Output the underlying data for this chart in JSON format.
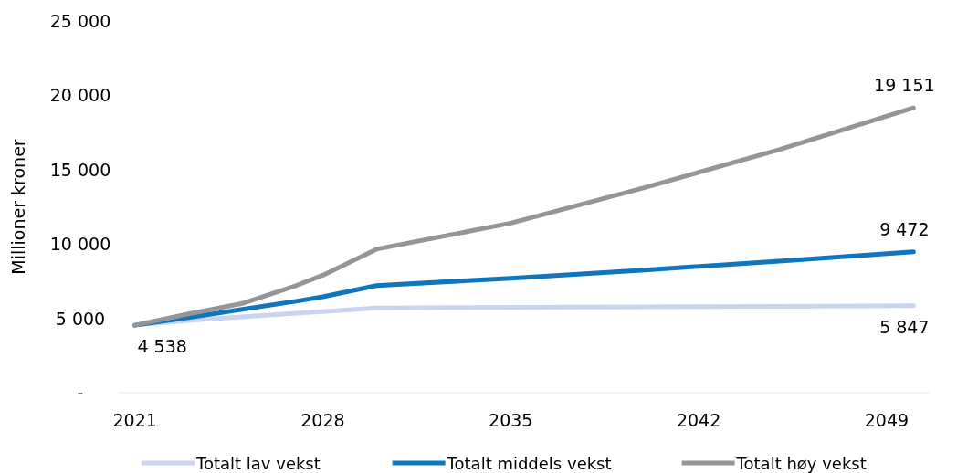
{
  "chart_data": {
    "type": "line",
    "ylabel": "Millioner kroner",
    "xlim": [
      2020.4,
      2050.6
    ],
    "xticks": [
      2021,
      2028,
      2035,
      2042,
      2049
    ],
    "ylim": [
      0,
      25000
    ],
    "yticks": [
      {
        "value": 0,
        "label": "-"
      },
      {
        "value": 5000,
        "label": "5 000"
      },
      {
        "value": 10000,
        "label": "10 000"
      },
      {
        "value": 15000,
        "label": "15 000"
      },
      {
        "value": 20000,
        "label": "20 000"
      },
      {
        "value": 25000,
        "label": "25 000"
      }
    ],
    "grid": false,
    "legend": "bottom",
    "marker": "none",
    "line_style": "solid",
    "x": [
      2021,
      2023,
      2025,
      2027,
      2028,
      2030,
      2035,
      2040,
      2045,
      2050
    ],
    "series": [
      {
        "name": "Totalt lav vekst",
        "color": "#c9d5ee",
        "values": [
          4538,
          4850,
          5100,
          5350,
          5450,
          5700,
          5740,
          5780,
          5810,
          5847
        ],
        "value_labels": [
          "4 538",
          null,
          null,
          null,
          null,
          null,
          null,
          null,
          null,
          "5 847"
        ]
      },
      {
        "name": "Totalt middels vekst",
        "color": "#0f75bc",
        "values": [
          4538,
          5050,
          5600,
          6150,
          6450,
          7200,
          7700,
          8250,
          8850,
          9472
        ],
        "value_labels": [
          null,
          null,
          null,
          null,
          null,
          null,
          null,
          null,
          null,
          "9 472"
        ]
      },
      {
        "name": "Totalt høy vekst",
        "color": "#939598",
        "values": [
          4538,
          5300,
          6000,
          7200,
          7900,
          9650,
          11400,
          13800,
          16350,
          19151
        ],
        "value_labels": [
          null,
          null,
          null,
          null,
          null,
          null,
          null,
          null,
          null,
          "19 151"
        ]
      }
    ]
  }
}
